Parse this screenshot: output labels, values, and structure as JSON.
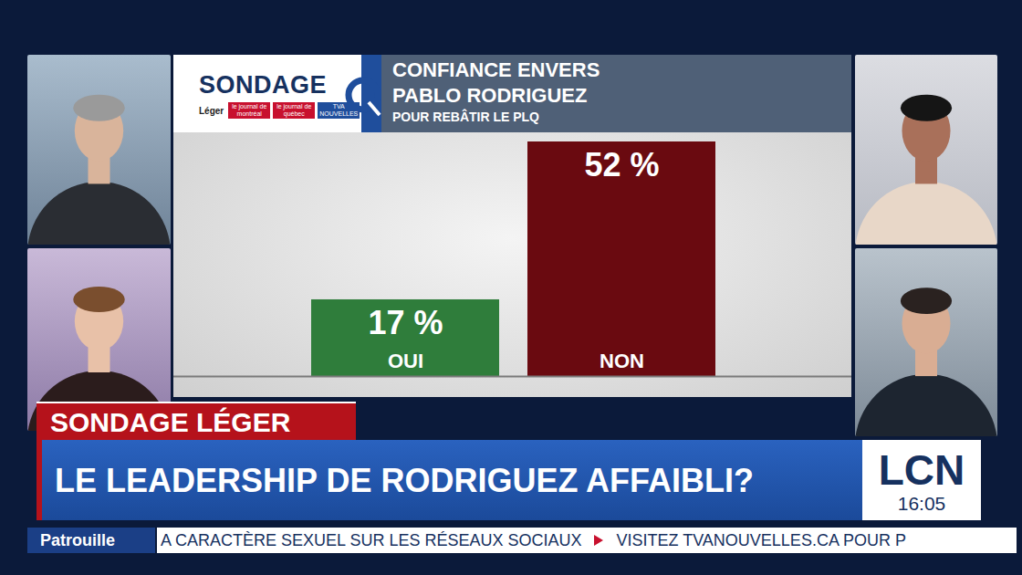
{
  "chart_data": {
    "type": "bar",
    "title": "CONFIANCE ENVERS PABLO RODRIGUEZ",
    "subtitle": "POUR REBÂTIR LE PLQ",
    "categories": [
      "OUI",
      "NON"
    ],
    "values": [
      17,
      52
    ],
    "value_labels": [
      "17 %",
      "52 %"
    ],
    "colors": [
      "#2f7d3b",
      "#6a0a10"
    ],
    "ylim": [
      0,
      52
    ],
    "yticks": [],
    "data_labels": true,
    "tick_labels": false,
    "grid": false
  },
  "logo": {
    "title": "SONDAGE",
    "sponsors": [
      "Léger",
      "le journal de montréal",
      "le journal de québec",
      "TVA NOUVELLES"
    ]
  },
  "banner": {
    "label": "SONDAGE LÉGER",
    "headline": "LE LEADERSHIP DE RODRIGUEZ AFFAIBLI?"
  },
  "channel": {
    "name": "LCN",
    "time": "16:05"
  },
  "ticker": {
    "label": "Patrouille",
    "items": [
      "A CARACTÈRE SEXUEL SUR LES RÉSEAUX SOCIAUX",
      "VISITEZ TVANOUVELLES.CA POUR P"
    ]
  }
}
